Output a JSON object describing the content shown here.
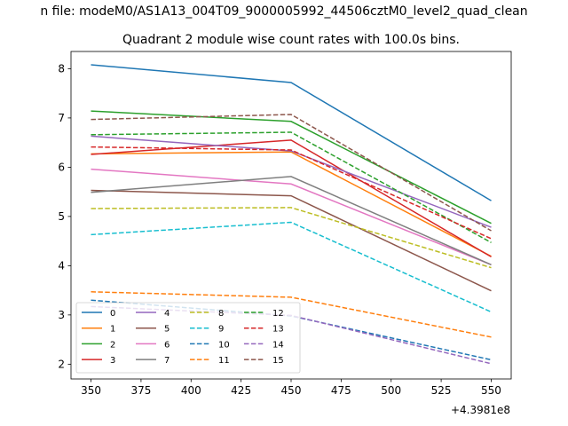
{
  "chart_data": {
    "type": "line",
    "suptitle": "n file: modeM0/AS1A13_004T09_9000005992_44506cztM0_level2_quad_clean",
    "title": "Quadrant 2 module wise count rates with 100.0s bins.",
    "xlabel": "",
    "ylabel": "",
    "x_offset_label": "+4.3981e8",
    "x": [
      350,
      450,
      550
    ],
    "xlim": [
      340,
      560
    ],
    "ylim": [
      1.7,
      8.35
    ],
    "xticks": [
      350,
      375,
      400,
      425,
      450,
      475,
      500,
      525,
      550
    ],
    "yticks": [
      2,
      3,
      4,
      5,
      6,
      7,
      8
    ],
    "grid": false,
    "legend": {
      "placement": "lower-left",
      "columns": 4
    },
    "series": [
      {
        "name": "0",
        "color": "#1f77b4",
        "dash": "solid",
        "values": [
          8.08,
          7.72,
          5.32
        ]
      },
      {
        "name": "1",
        "color": "#ff7f0e",
        "dash": "solid",
        "values": [
          6.27,
          6.31,
          4.19
        ]
      },
      {
        "name": "2",
        "color": "#2ca02c",
        "dash": "solid",
        "values": [
          7.14,
          6.93,
          4.86
        ]
      },
      {
        "name": "3",
        "color": "#d62728",
        "dash": "solid",
        "values": [
          6.26,
          6.55,
          4.18
        ]
      },
      {
        "name": "4",
        "color": "#9467bd",
        "dash": "solid",
        "values": [
          6.63,
          6.33,
          4.78
        ]
      },
      {
        "name": "5",
        "color": "#8c564b",
        "dash": "solid",
        "values": [
          5.53,
          5.42,
          3.49
        ]
      },
      {
        "name": "6",
        "color": "#e377c2",
        "dash": "solid",
        "values": [
          5.96,
          5.66,
          4.02
        ]
      },
      {
        "name": "7",
        "color": "#7f7f7f",
        "dash": "solid",
        "values": [
          5.49,
          5.81,
          4.02
        ]
      },
      {
        "name": "8",
        "color": "#bcbd22",
        "dash": "dashed",
        "values": [
          5.16,
          5.18,
          3.96
        ]
      },
      {
        "name": "9",
        "color": "#17becf",
        "dash": "dashed",
        "values": [
          4.63,
          4.88,
          3.06
        ]
      },
      {
        "name": "10",
        "color": "#1f77b4",
        "dash": "dashed",
        "values": [
          3.3,
          2.98,
          2.09
        ]
      },
      {
        "name": "11",
        "color": "#ff7f0e",
        "dash": "dashed",
        "values": [
          3.47,
          3.36,
          2.55
        ]
      },
      {
        "name": "12",
        "color": "#2ca02c",
        "dash": "dashed",
        "values": [
          6.66,
          6.71,
          4.47
        ]
      },
      {
        "name": "13",
        "color": "#d62728",
        "dash": "dashed",
        "values": [
          6.41,
          6.35,
          4.55
        ]
      },
      {
        "name": "14",
        "color": "#9467bd",
        "dash": "dashed",
        "values": [
          3.17,
          2.99,
          2.01
        ]
      },
      {
        "name": "15",
        "color": "#8c564b",
        "dash": "dashed",
        "values": [
          6.97,
          7.07,
          4.71
        ]
      }
    ]
  }
}
